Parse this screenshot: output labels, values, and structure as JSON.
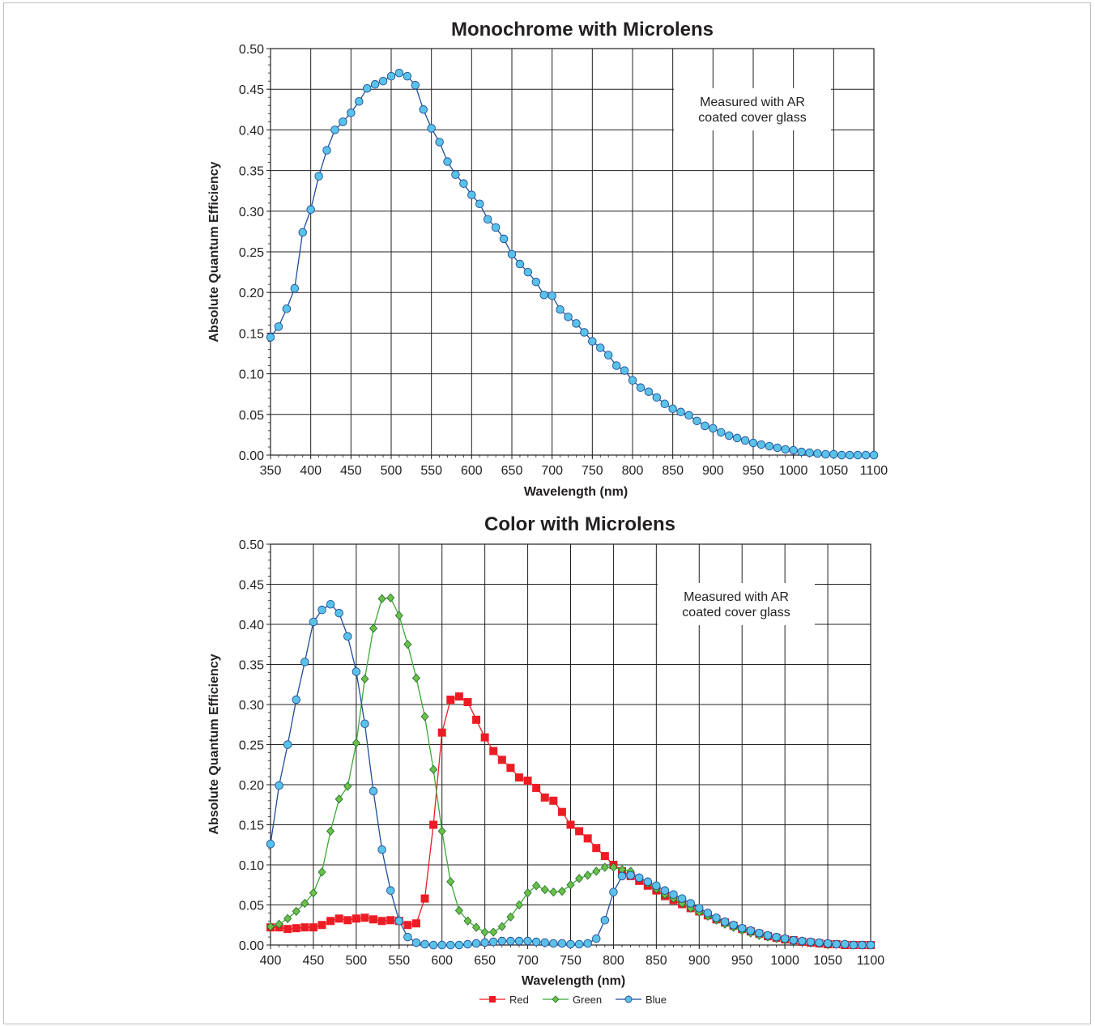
{
  "chart_data": [
    {
      "type": "line",
      "title": "Monochrome with Microlens",
      "xlabel": "Wavelength (nm)",
      "ylabel": "Absolute Quantum Efficiency",
      "xlim": [
        350,
        1100
      ],
      "ylim": [
        0,
        0.5
      ],
      "xticks": [
        350,
        400,
        450,
        500,
        550,
        600,
        650,
        700,
        750,
        800,
        850,
        900,
        950,
        1000,
        1050,
        1100
      ],
      "yticks": [
        0.0,
        0.05,
        0.1,
        0.15,
        0.2,
        0.25,
        0.3,
        0.35,
        0.4,
        0.45,
        0.5
      ],
      "grid": true,
      "annotation": [
        "Measured with AR",
        "coated cover glass"
      ],
      "series": [
        {
          "color": "#1f4e9a",
          "marker_fill": "#5bc2e7",
          "marker": "circle",
          "x": [
            350,
            360,
            370,
            380,
            390,
            400,
            410,
            420,
            430,
            440,
            450,
            460,
            470,
            480,
            490,
            500,
            510,
            520,
            530,
            540,
            550,
            560,
            570,
            580,
            590,
            600,
            610,
            620,
            630,
            640,
            650,
            660,
            670,
            680,
            690,
            700,
            710,
            720,
            730,
            740,
            750,
            760,
            770,
            780,
            790,
            800,
            810,
            820,
            830,
            840,
            850,
            860,
            870,
            880,
            890,
            900,
            910,
            920,
            930,
            940,
            950,
            960,
            970,
            980,
            990,
            1000,
            1010,
            1020,
            1030,
            1040,
            1050,
            1060,
            1070,
            1080,
            1090,
            1100
          ],
          "y": [
            0.145,
            0.158,
            0.18,
            0.205,
            0.274,
            0.302,
            0.343,
            0.375,
            0.4,
            0.41,
            0.421,
            0.435,
            0.451,
            0.456,
            0.46,
            0.466,
            0.47,
            0.466,
            0.455,
            0.425,
            0.402,
            0.385,
            0.361,
            0.345,
            0.334,
            0.32,
            0.309,
            0.29,
            0.28,
            0.266,
            0.247,
            0.235,
            0.225,
            0.213,
            0.197,
            0.196,
            0.179,
            0.17,
            0.162,
            0.151,
            0.14,
            0.132,
            0.123,
            0.11,
            0.104,
            0.092,
            0.083,
            0.078,
            0.071,
            0.063,
            0.057,
            0.053,
            0.049,
            0.042,
            0.036,
            0.033,
            0.028,
            0.024,
            0.021,
            0.018,
            0.015,
            0.013,
            0.011,
            0.009,
            0.007,
            0.006,
            0.004,
            0.003,
            0.002,
            0.001,
            0.001,
            0.0,
            0.0,
            0.0,
            0.0,
            0.0
          ]
        }
      ]
    },
    {
      "type": "line",
      "title": "Color with Microlens",
      "xlabel": "Wavelength (nm)",
      "ylabel": "Absolute Quantum Efficiency",
      "xlim": [
        400,
        1100
      ],
      "ylim": [
        0,
        0.5
      ],
      "xticks": [
        400,
        450,
        500,
        550,
        600,
        650,
        700,
        750,
        800,
        850,
        900,
        950,
        1000,
        1050,
        1100
      ],
      "yticks": [
        0.0,
        0.05,
        0.1,
        0.15,
        0.2,
        0.25,
        0.3,
        0.35,
        0.4,
        0.45,
        0.5
      ],
      "grid": true,
      "annotation": [
        "Measured with AR",
        "coated cover glass"
      ],
      "legend_position": "bottom-center",
      "series": [
        {
          "name": "Red",
          "color": "#ed1c24",
          "marker": "square",
          "x": [
            400,
            410,
            420,
            430,
            440,
            450,
            460,
            470,
            480,
            490,
            500,
            510,
            520,
            530,
            540,
            550,
            560,
            570,
            580,
            590,
            600,
            610,
            620,
            630,
            640,
            650,
            660,
            670,
            680,
            690,
            700,
            710,
            720,
            730,
            740,
            750,
            760,
            770,
            780,
            790,
            800,
            810,
            820,
            830,
            840,
            850,
            860,
            870,
            880,
            890,
            900,
            910,
            920,
            930,
            940,
            950,
            960,
            970,
            980,
            990,
            1000,
            1010,
            1020,
            1030,
            1040,
            1050,
            1060,
            1070,
            1080,
            1090,
            1100
          ],
          "y": [
            0.022,
            0.022,
            0.02,
            0.021,
            0.022,
            0.022,
            0.025,
            0.03,
            0.033,
            0.031,
            0.033,
            0.034,
            0.032,
            0.03,
            0.031,
            0.03,
            0.025,
            0.027,
            0.058,
            0.15,
            0.265,
            0.306,
            0.31,
            0.303,
            0.281,
            0.259,
            0.242,
            0.231,
            0.221,
            0.209,
            0.205,
            0.196,
            0.184,
            0.18,
            0.166,
            0.15,
            0.142,
            0.133,
            0.121,
            0.111,
            0.1,
            0.092,
            0.086,
            0.08,
            0.074,
            0.068,
            0.061,
            0.056,
            0.051,
            0.046,
            0.042,
            0.037,
            0.032,
            0.028,
            0.024,
            0.02,
            0.017,
            0.014,
            0.011,
            0.009,
            0.007,
            0.006,
            0.004,
            0.003,
            0.002,
            0.001,
            0.001,
            0.0,
            0.0,
            0.0,
            0.0
          ]
        },
        {
          "name": "Green",
          "color": "#3aa935",
          "marker_fill": "#6cc04a",
          "marker": "diamond",
          "x": [
            400,
            410,
            420,
            430,
            440,
            450,
            460,
            470,
            480,
            490,
            500,
            510,
            520,
            530,
            540,
            550,
            560,
            570,
            580,
            590,
            600,
            610,
            620,
            630,
            640,
            650,
            660,
            670,
            680,
            690,
            700,
            710,
            720,
            730,
            740,
            750,
            760,
            770,
            780,
            790,
            800,
            810,
            820,
            830,
            840,
            850,
            860,
            870,
            880,
            890,
            900,
            910,
            920,
            930,
            940,
            950,
            960,
            970,
            980,
            990,
            1000,
            1010,
            1020,
            1030,
            1040,
            1050,
            1060,
            1070,
            1080,
            1090,
            1100
          ],
          "y": [
            0.023,
            0.026,
            0.033,
            0.042,
            0.052,
            0.065,
            0.091,
            0.142,
            0.182,
            0.198,
            0.252,
            0.332,
            0.395,
            0.432,
            0.433,
            0.411,
            0.375,
            0.333,
            0.285,
            0.219,
            0.142,
            0.079,
            0.043,
            0.03,
            0.022,
            0.016,
            0.016,
            0.023,
            0.035,
            0.05,
            0.065,
            0.074,
            0.069,
            0.066,
            0.067,
            0.075,
            0.083,
            0.087,
            0.092,
            0.097,
            0.097,
            0.094,
            0.092,
            0.084,
            0.077,
            0.07,
            0.063,
            0.058,
            0.052,
            0.046,
            0.041,
            0.036,
            0.031,
            0.026,
            0.022,
            0.018,
            0.015,
            0.012,
            0.01,
            0.008,
            0.006,
            0.005,
            0.004,
            0.003,
            0.002,
            0.001,
            0.001,
            0.001,
            0.0,
            0.0,
            0.0
          ]
        },
        {
          "name": "Blue",
          "color": "#1f4e9a",
          "marker_fill": "#5bc2e7",
          "marker": "circle",
          "x": [
            400,
            410,
            420,
            430,
            440,
            450,
            460,
            470,
            480,
            490,
            500,
            510,
            520,
            530,
            540,
            550,
            560,
            570,
            580,
            590,
            600,
            610,
            620,
            630,
            640,
            650,
            660,
            670,
            680,
            690,
            700,
            710,
            720,
            730,
            740,
            750,
            760,
            770,
            780,
            790,
            800,
            810,
            820,
            830,
            840,
            850,
            860,
            870,
            880,
            890,
            900,
            910,
            920,
            930,
            940,
            950,
            960,
            970,
            980,
            990,
            1000,
            1010,
            1020,
            1030,
            1040,
            1050,
            1060,
            1070,
            1080,
            1090,
            1100
          ],
          "y": [
            0.126,
            0.199,
            0.25,
            0.306,
            0.353,
            0.403,
            0.418,
            0.425,
            0.414,
            0.385,
            0.341,
            0.276,
            0.192,
            0.119,
            0.068,
            0.03,
            0.01,
            0.003,
            0.001,
            0.0,
            0.0,
            0.0,
            0.0,
            0.001,
            0.002,
            0.003,
            0.004,
            0.005,
            0.005,
            0.005,
            0.005,
            0.004,
            0.003,
            0.002,
            0.002,
            0.001,
            0.001,
            0.002,
            0.008,
            0.031,
            0.066,
            0.086,
            0.087,
            0.084,
            0.079,
            0.074,
            0.068,
            0.063,
            0.058,
            0.052,
            0.046,
            0.04,
            0.034,
            0.029,
            0.025,
            0.021,
            0.018,
            0.015,
            0.012,
            0.01,
            0.008,
            0.006,
            0.005,
            0.004,
            0.003,
            0.002,
            0.001,
            0.001,
            0.0,
            0.0,
            0.0
          ]
        }
      ]
    }
  ]
}
